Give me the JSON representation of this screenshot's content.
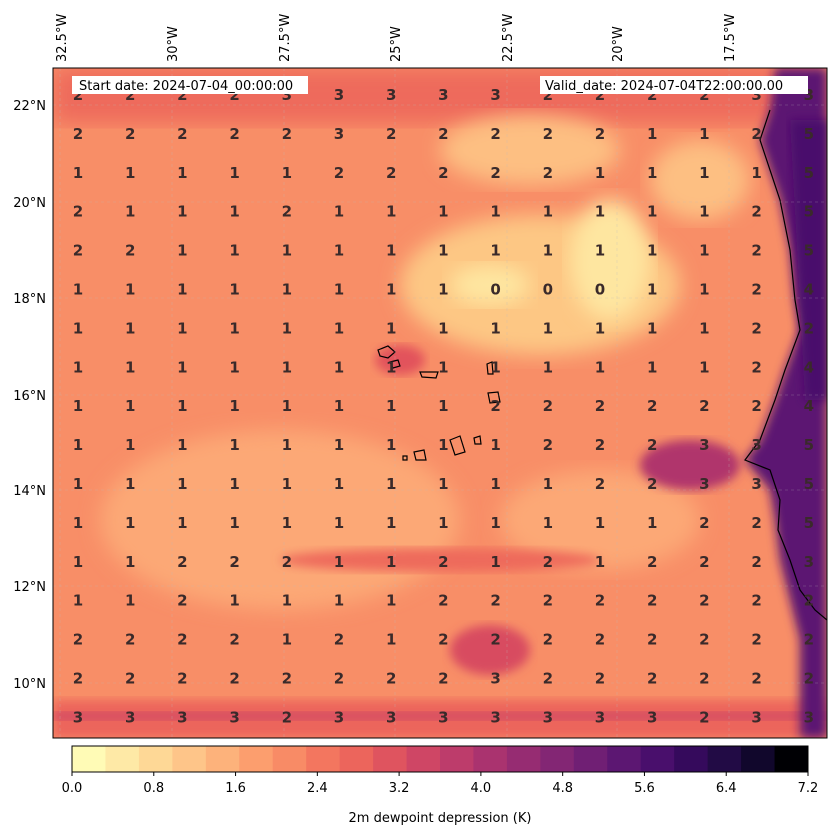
{
  "header": {
    "start_date": "Start date: 2024-07-04_00:00:00",
    "valid_date": "Valid_date: 2024-07-04T22:00:00.00"
  },
  "lon_labels": [
    "32.5°W",
    "30°W",
    "27.5°W",
    "25°W",
    "22.5°W",
    "20°W",
    "17.5°W"
  ],
  "lat_labels": [
    "22°N",
    "20°N",
    "18°N",
    "16°N",
    "14°N",
    "12°N",
    "10°N"
  ],
  "grid_values": [
    [
      2,
      2,
      2,
      2,
      3,
      3,
      3,
      3,
      3,
      2,
      2,
      2,
      2,
      3,
      3
    ],
    [
      2,
      2,
      2,
      2,
      2,
      3,
      2,
      2,
      2,
      2,
      2,
      1,
      1,
      2,
      5
    ],
    [
      1,
      1,
      1,
      1,
      1,
      2,
      2,
      2,
      2,
      2,
      1,
      1,
      1,
      1,
      5
    ],
    [
      2,
      1,
      1,
      1,
      2,
      1,
      1,
      1,
      1,
      1,
      1,
      1,
      1,
      2,
      5
    ],
    [
      2,
      2,
      1,
      1,
      1,
      1,
      1,
      1,
      1,
      1,
      1,
      1,
      1,
      2,
      5
    ],
    [
      1,
      1,
      1,
      1,
      1,
      1,
      1,
      1,
      0,
      0,
      0,
      1,
      1,
      2,
      4
    ],
    [
      1,
      1,
      1,
      1,
      1,
      1,
      1,
      1,
      1,
      1,
      1,
      1,
      1,
      2,
      2
    ],
    [
      1,
      1,
      1,
      1,
      1,
      1,
      1,
      1,
      1,
      1,
      1,
      1,
      1,
      2,
      4
    ],
    [
      1,
      1,
      1,
      1,
      1,
      1,
      1,
      1,
      2,
      2,
      2,
      2,
      2,
      2,
      4
    ],
    [
      1,
      1,
      1,
      1,
      1,
      1,
      1,
      1,
      1,
      2,
      2,
      2,
      3,
      3,
      5
    ],
    [
      1,
      1,
      1,
      1,
      1,
      1,
      1,
      1,
      1,
      1,
      2,
      2,
      3,
      3,
      5
    ],
    [
      1,
      1,
      1,
      1,
      1,
      1,
      1,
      1,
      1,
      1,
      1,
      1,
      2,
      2,
      5
    ],
    [
      1,
      1,
      2,
      2,
      2,
      1,
      1,
      2,
      1,
      2,
      1,
      2,
      2,
      2,
      3
    ],
    [
      1,
      1,
      2,
      1,
      1,
      1,
      1,
      2,
      2,
      2,
      2,
      2,
      2,
      2,
      2
    ],
    [
      2,
      2,
      2,
      2,
      1,
      2,
      1,
      2,
      2,
      2,
      2,
      2,
      2,
      2,
      2
    ],
    [
      2,
      2,
      2,
      2,
      2,
      2,
      2,
      2,
      3,
      2,
      2,
      2,
      2,
      2,
      2
    ],
    [
      3,
      3,
      3,
      3,
      2,
      3,
      3,
      3,
      3,
      3,
      3,
      3,
      2,
      3,
      3
    ]
  ],
  "colorbar": {
    "label": "2m dewpoint depression (K)",
    "ticks": [
      "0.0",
      "0.8",
      "1.6",
      "2.4",
      "3.2",
      "4.0",
      "4.8",
      "5.6",
      "6.4",
      "7.2"
    ],
    "colors": [
      "#fffbb6",
      "#fee9a6",
      "#fed896",
      "#fec589",
      "#fdb27b",
      "#fc9e6e",
      "#f88b66",
      "#f3765f",
      "#ec655c",
      "#df545f",
      "#cf4665",
      "#bd3c6b",
      "#aa336f",
      "#962c72",
      "#832674",
      "#701f74",
      "#5c1772",
      "#490f6c",
      "#350a5c",
      "#220b45",
      "#11072c",
      "#000004"
    ]
  }
}
